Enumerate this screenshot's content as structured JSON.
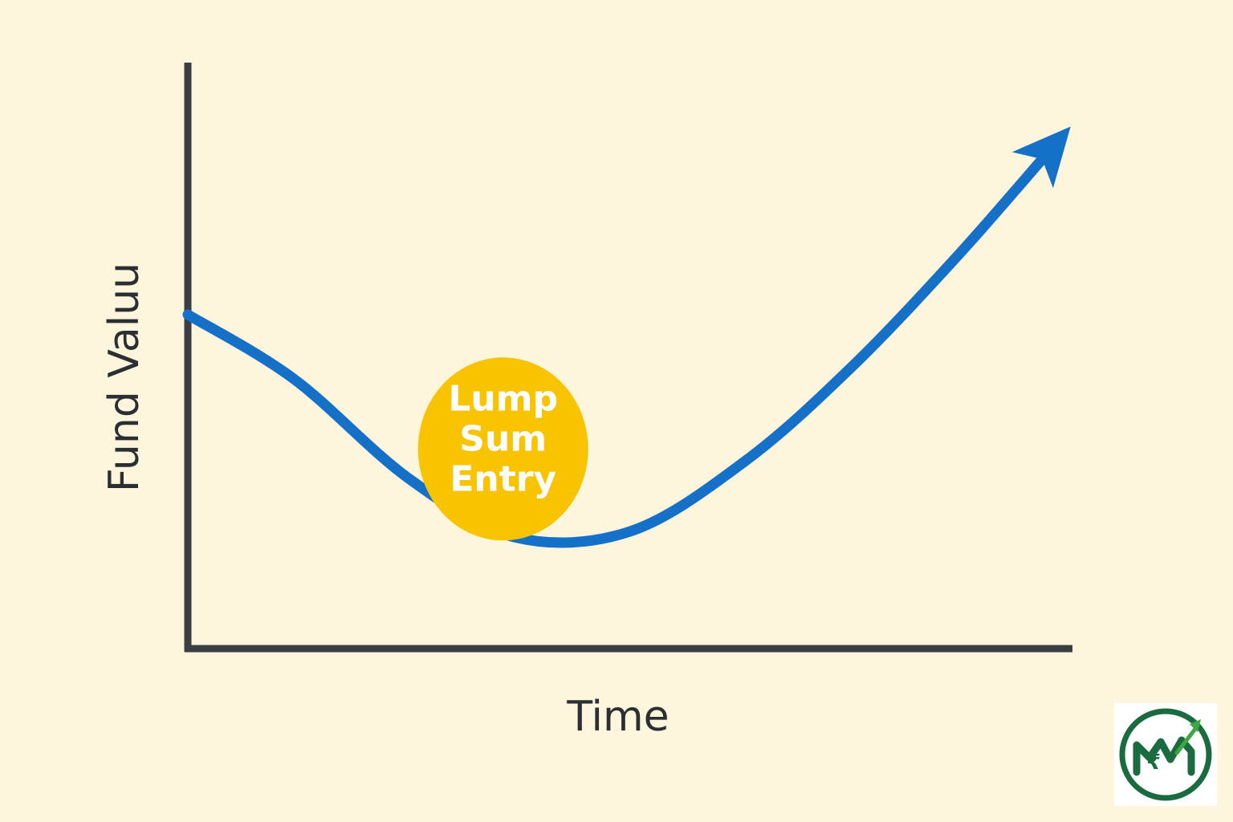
{
  "colors": {
    "background": "#fdf6dd",
    "axis": "#3a3f43",
    "curve": "#1570c8",
    "bubble": "#f8c400",
    "logo_green": "#1a6b3f",
    "logo_accent": "#3aa845"
  },
  "chart_data": {
    "type": "line",
    "title": "",
    "xlabel": "Time",
    "ylabel": "Fund Valuu",
    "xlim": [
      0,
      100
    ],
    "ylim": [
      0,
      100
    ],
    "grid": false,
    "legend": "none",
    "axis_ticks": false,
    "series": [
      {
        "ends_with_arrow": true,
        "x": [
          0,
          12,
          25,
          37,
          50,
          63,
          75,
          87,
          98
        ],
        "y": [
          57,
          46,
          29,
          19,
          20,
          32,
          48,
          67,
          86
        ]
      }
    ],
    "annotations": [
      {
        "lines": [
          "Lump",
          "Sum",
          "Entry"
        ],
        "shape": "circle",
        "at_x": 37,
        "at_y": 19
      }
    ]
  },
  "logo": {
    "icon": "mutual-fund-growth-logo-icon"
  }
}
